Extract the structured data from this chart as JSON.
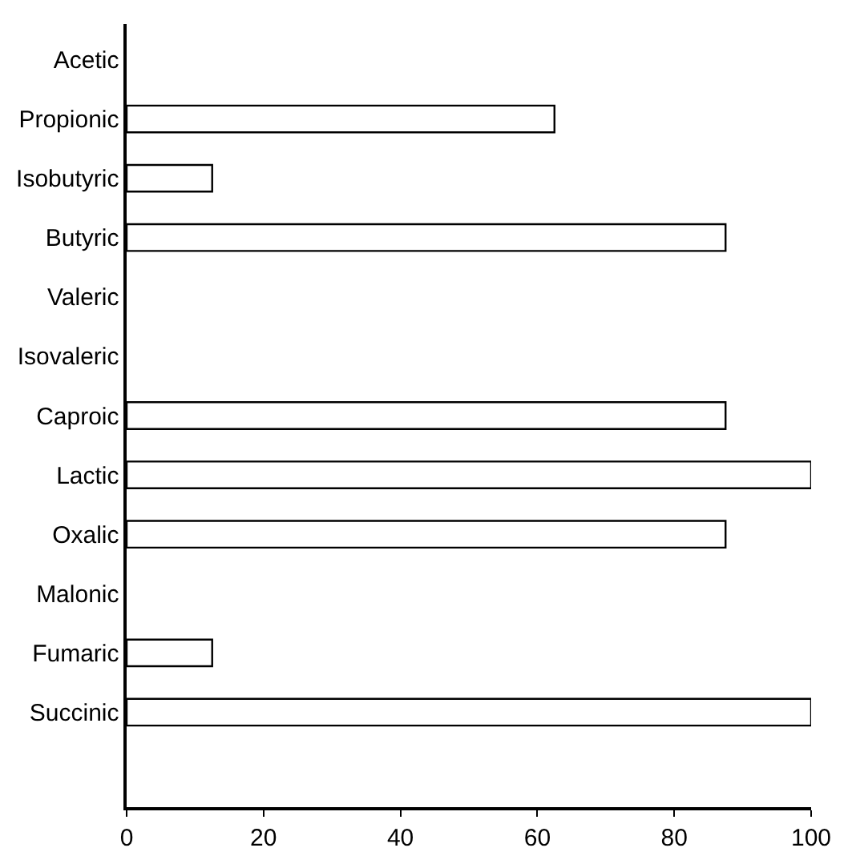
{
  "chart_data": {
    "type": "bar",
    "orientation": "horizontal",
    "categories": [
      "Acetic",
      "Propionic",
      "Isobutyric",
      "Butyric",
      "Valeric",
      "Isovaleric",
      "Caproic",
      "Lactic",
      "Oxalic",
      "Malonic",
      "Fumaric",
      "Succinic"
    ],
    "values": [
      null,
      62.5,
      12.5,
      87.5,
      null,
      null,
      87.5,
      100,
      87.5,
      null,
      12.5,
      100
    ],
    "color": "#ffffff",
    "xlim": [
      0,
      100
    ],
    "xticks": [
      0,
      20,
      40,
      60,
      80,
      100
    ]
  }
}
